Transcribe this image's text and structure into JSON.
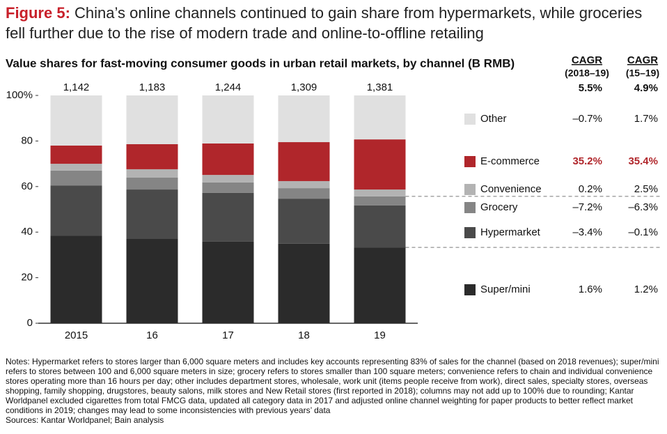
{
  "chart_data": {
    "type": "stacked_bar",
    "figure_label": "Figure 5:",
    "title": "China’s online channels continued to gain share from hypermarkets, while groceries fell further due to the rise of modern trade and online-to-offline retailing",
    "subtitle": "Value shares for fast-moving consumer goods in urban retail markets, by channel (B RMB)",
    "categories": [
      "2015",
      "16",
      "17",
      "18",
      "19"
    ],
    "ylim": [
      0,
      100
    ],
    "yticks": [
      0,
      20,
      40,
      60,
      80,
      {
        "value": 100,
        "label": "100%"
      }
    ],
    "totals": {
      "values": [
        1142,
        1183,
        1244,
        1309,
        1381
      ],
      "value_labels": [
        "1,142",
        "1,183",
        "1,244",
        "1,309",
        "1,381"
      ]
    },
    "cagr_columns": [
      {
        "title": "CAGR",
        "period": "(2018–19)",
        "total": "5.5%"
      },
      {
        "title": "CAGR",
        "period": "(15–19)",
        "total": "4.9%"
      }
    ],
    "series": [
      {
        "name": "Super/mini",
        "color": "#2b2b2b",
        "values": [
          38.5,
          37.0,
          35.8,
          34.9,
          33.3
        ],
        "cagr": [
          "1.6%",
          "1.2%"
        ]
      },
      {
        "name": "Hypermarket",
        "color": "#4a4a4a",
        "values": [
          22.0,
          21.7,
          21.4,
          19.8,
          18.4
        ],
        "cagr": [
          "–3.4%",
          "–0.1%"
        ]
      },
      {
        "name": "Grocery",
        "color": "#858585",
        "values": [
          6.5,
          5.3,
          4.6,
          4.6,
          4.0
        ],
        "cagr": [
          "–7.2%",
          "–6.3%"
        ]
      },
      {
        "name": "Convenience",
        "color": "#b3b3b3",
        "values": [
          3.0,
          3.6,
          3.3,
          3.1,
          3.0
        ],
        "cagr": [
          "0.2%",
          "2.5%"
        ]
      },
      {
        "name": "E-commerce",
        "color": "#b0262b",
        "values": [
          8.0,
          11.0,
          13.8,
          17.1,
          22.0
        ],
        "cagr": [
          "35.2%",
          "35.4%"
        ],
        "highlight": true
      },
      {
        "name": "Other",
        "color": "#e0e0e0",
        "values": [
          22.0,
          21.4,
          21.1,
          20.5,
          19.3
        ],
        "cagr": [
          "–0.7%",
          "1.7%"
        ]
      }
    ],
    "notes": "Notes: Hypermarket refers to stores larger than 6,000 square meters and includes key accounts representing 83% of sales for the channel (based on 2018 revenues); super/mini refers to stores between 100 and 6,000 square meters in size; grocery refers to stores smaller than 100 square meters; convenience refers to chain and individual convenience stores operating more than 16 hours per day; other includes department stores, wholesale, work unit (items people receive from work), direct sales, specialty stores, overseas shopping, family shopping, drugstores, beauty salons, milk stores and New Retail stores (first reported in 2018); columns may not add up to 100% due to rounding; Kantar Worldpanel excluded cigarettes from total FMCG data, updated all category data in 2017 and adjusted online channel weighting for paper products to better reflect market conditions in 2019; changes may lead to some inconsistencies with previous years’ data",
    "sources": "Sources: Kantar Worldpanel; Bain analysis"
  }
}
